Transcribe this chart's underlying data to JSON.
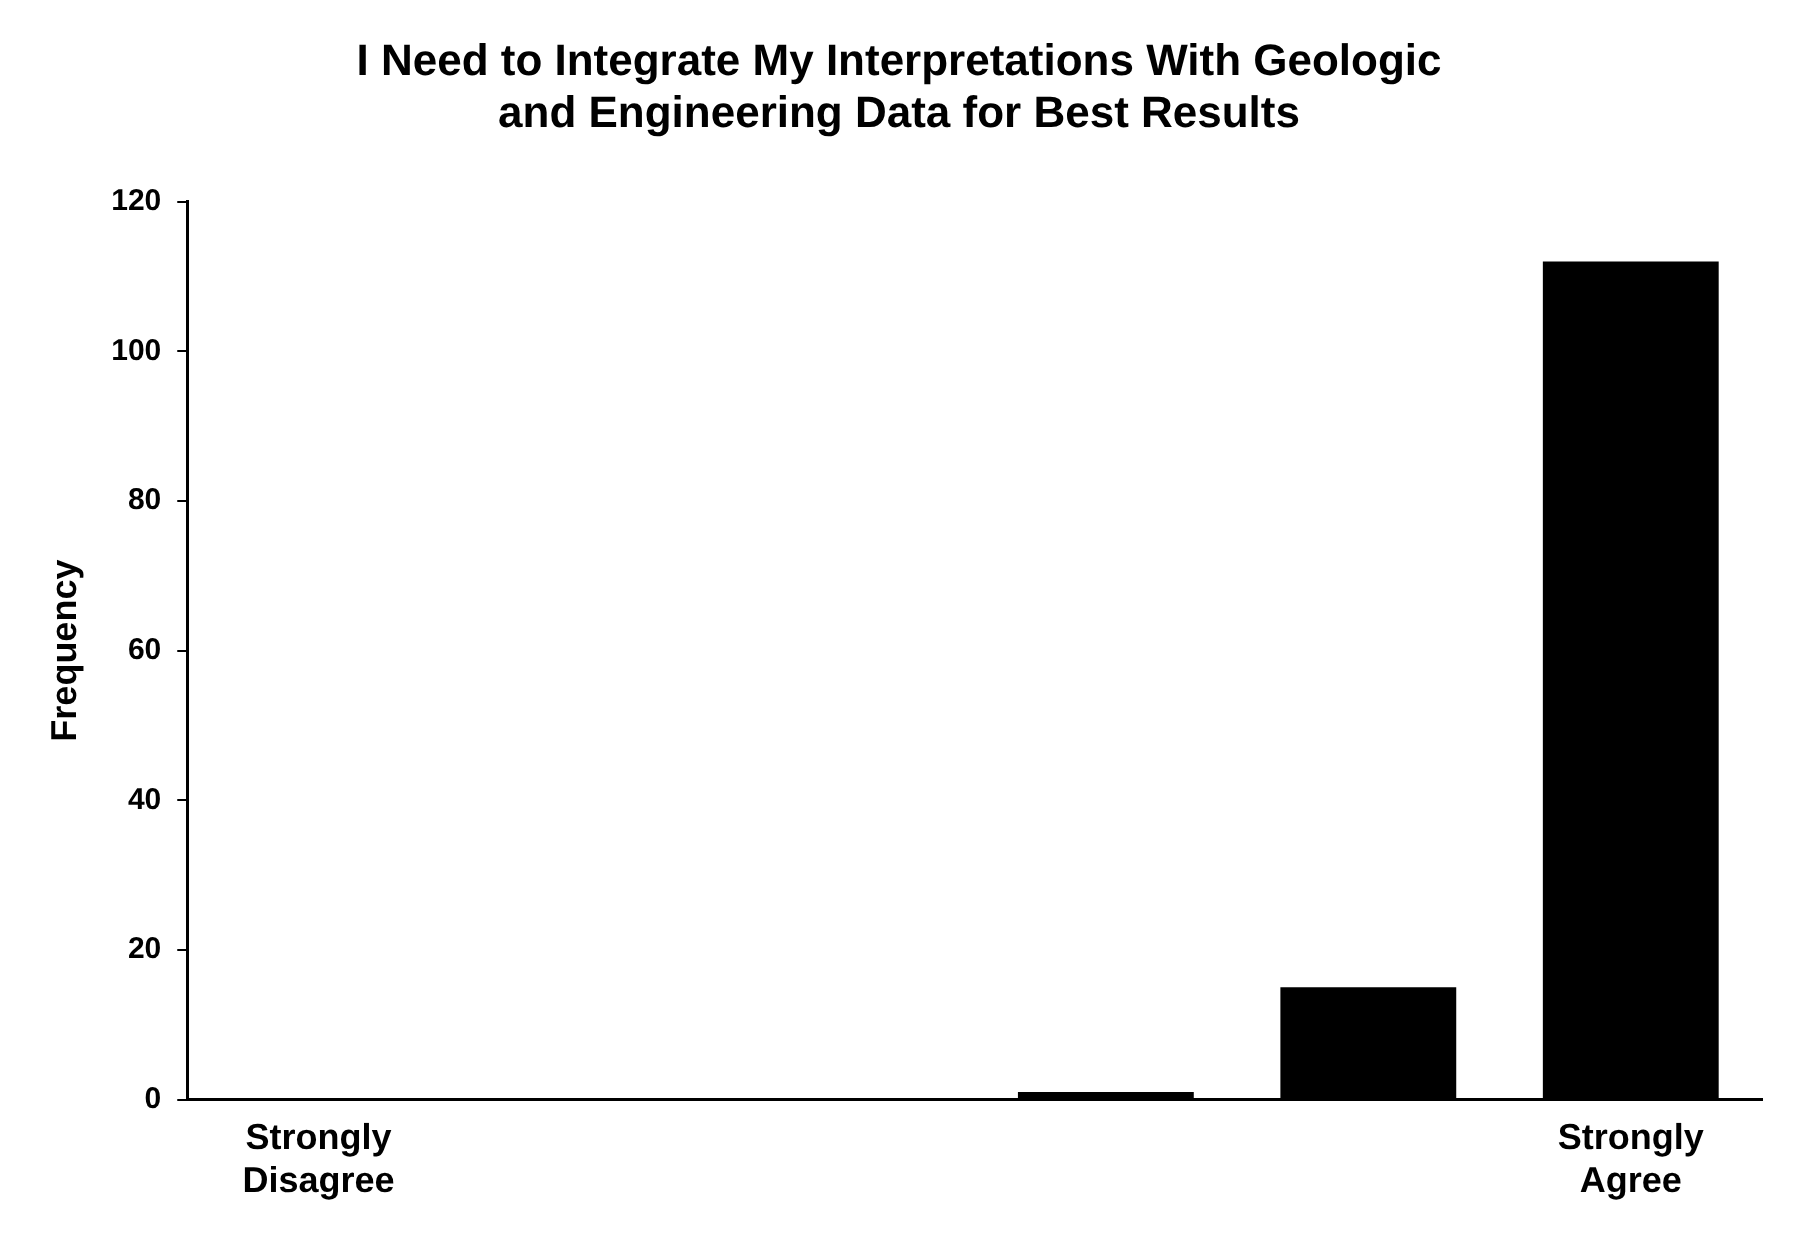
{
  "chart_data": {
    "type": "bar",
    "title": "I Need to Integrate My Interpretations With Geologic and Engineering Data for Best Results",
    "ylabel": "Frequency",
    "categories": [
      "Strongly Disagree",
      null,
      null,
      null,
      null,
      "Strongly Agree"
    ],
    "values": [
      0,
      0,
      0,
      1,
      15,
      112
    ],
    "color": "#000000",
    "ylim": [
      0,
      120
    ],
    "yticks": [
      0,
      20,
      40,
      60,
      80,
      100,
      120
    ],
    "grid": false,
    "legend": false
  }
}
